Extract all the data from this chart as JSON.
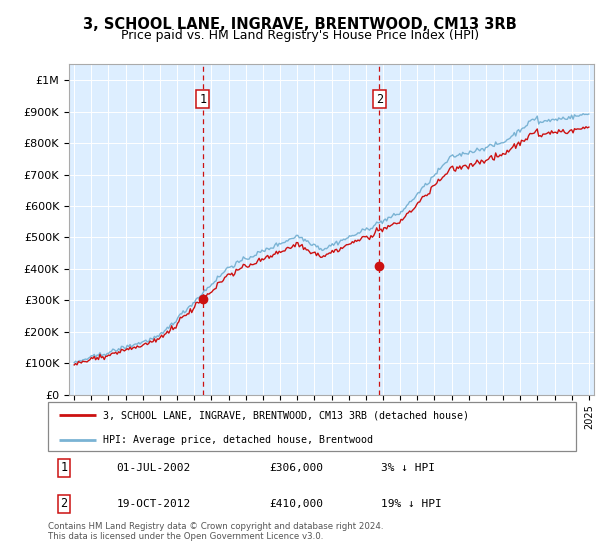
{
  "title": "3, SCHOOL LANE, INGRAVE, BRENTWOOD, CM13 3RB",
  "subtitle": "Price paid vs. HM Land Registry's House Price Index (HPI)",
  "ylim": [
    0,
    1050000
  ],
  "yticks": [
    0,
    100000,
    200000,
    300000,
    400000,
    500000,
    600000,
    700000,
    800000,
    900000,
    1000000
  ],
  "ytick_labels": [
    "£0",
    "£100K",
    "£200K",
    "£300K",
    "£400K",
    "£500K",
    "£600K",
    "£700K",
    "£800K",
    "£900K",
    "£1M"
  ],
  "hpi_color": "#7ab3d4",
  "price_color": "#cc1111",
  "vline_color": "#cc1111",
  "plot_bg": "#ddeeff",
  "sale1_date": 2002.5,
  "sale1_price": 306000,
  "sale2_date": 2012.79,
  "sale2_price": 410000,
  "legend_label1": "3, SCHOOL LANE, INGRAVE, BRENTWOOD, CM13 3RB (detached house)",
  "legend_label2": "HPI: Average price, detached house, Brentwood",
  "table_row1": [
    "1",
    "01-JUL-2002",
    "£306,000",
    "3% ↓ HPI"
  ],
  "table_row2": [
    "2",
    "19-OCT-2012",
    "£410,000",
    "19% ↓ HPI"
  ],
  "footnote": "Contains HM Land Registry data © Crown copyright and database right 2024.\nThis data is licensed under the Open Government Licence v3.0."
}
